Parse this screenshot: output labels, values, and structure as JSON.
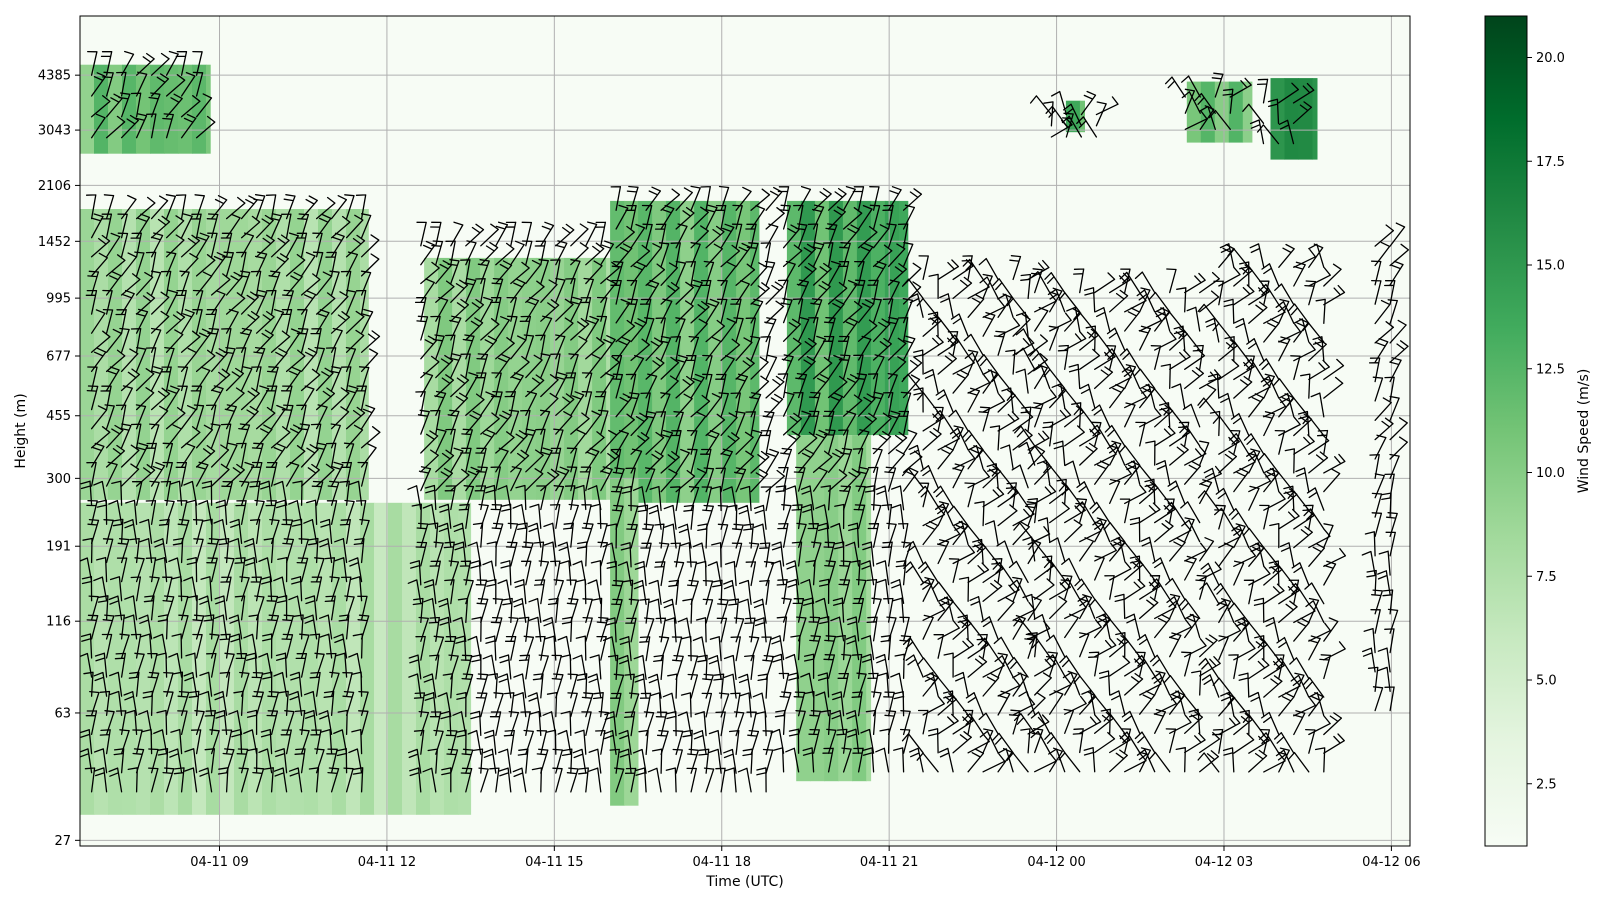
{
  "chart_data": {
    "type": "heatmap",
    "subtype": "wind-profile-with-barbs",
    "xlabel": "Time (UTC)",
    "ylabel": "Height (m)",
    "colorbar_label": "Wind Speed (m/s)",
    "colormap": "Greens",
    "colormap_min_color": "#f7fcf5",
    "colormap_max_color": "#00441b",
    "x_range_hours_utc": [
      "04-11 06:30",
      "04-12 06:20"
    ],
    "x_ticks": [
      "04-11 09",
      "04-11 12",
      "04-11 15",
      "04-11 18",
      "04-11 21",
      "04-12 00",
      "04-12 03",
      "04-12 06"
    ],
    "y_scale": "log",
    "y_range_m": [
      26,
      6500
    ],
    "y_ticks": [
      "27",
      "63",
      "116",
      "191",
      "300",
      "455",
      "677",
      "995",
      "1452",
      "2106",
      "3043",
      "4385"
    ],
    "colorbar_range": [
      1,
      21
    ],
    "colorbar_ticks": [
      "2.5",
      "5.0",
      "7.5",
      "10.0",
      "12.5",
      "15.0",
      "17.5",
      "20.0"
    ],
    "grid": true,
    "barb_color": "#000000",
    "wind_field_regions": [
      {
        "time_start": "04-11 06:30",
        "time_end": "04-11 08:50",
        "height_range_m": [
          2600,
          4700
        ],
        "speed_ms": 11
      },
      {
        "time_start": "04-11 06:30",
        "time_end": "04-11 11:40",
        "height_range_m": [
          260,
          1800
        ],
        "speed_ms": 8
      },
      {
        "time_start": "04-11 06:30",
        "time_end": "04-11 13:30",
        "height_range_m": [
          32,
          255
        ],
        "speed_ms": 7
      },
      {
        "time_start": "04-11 12:40",
        "time_end": "04-11 16:00",
        "height_range_m": [
          260,
          1300
        ],
        "speed_ms": 9
      },
      {
        "time_start": "04-11 16:00",
        "time_end": "04-11 18:40",
        "height_range_m": [
          255,
          1900
        ],
        "speed_ms": 11
      },
      {
        "time_start": "04-11 16:00",
        "time_end": "04-11 16:30",
        "height_range_m": [
          34,
          300
        ],
        "speed_ms": 9
      },
      {
        "time_start": "04-11 19:10",
        "time_end": "04-11 21:20",
        "height_range_m": [
          400,
          1900
        ],
        "speed_ms": 13
      },
      {
        "time_start": "04-11 19:20",
        "time_end": "04-11 20:40",
        "height_range_m": [
          40,
          400
        ],
        "speed_ms": 9
      },
      {
        "time_start": "04-12 00:10",
        "time_end": "04-12 00:30",
        "height_range_m": [
          3000,
          3700
        ],
        "speed_ms": 12
      },
      {
        "time_start": "04-12 02:20",
        "time_end": "04-12 03:30",
        "height_range_m": [
          2800,
          4200
        ],
        "speed_ms": 11
      },
      {
        "time_start": "04-12 03:50",
        "time_end": "04-12 04:40",
        "height_range_m": [
          2500,
          4300
        ],
        "speed_ms": 15
      }
    ]
  }
}
